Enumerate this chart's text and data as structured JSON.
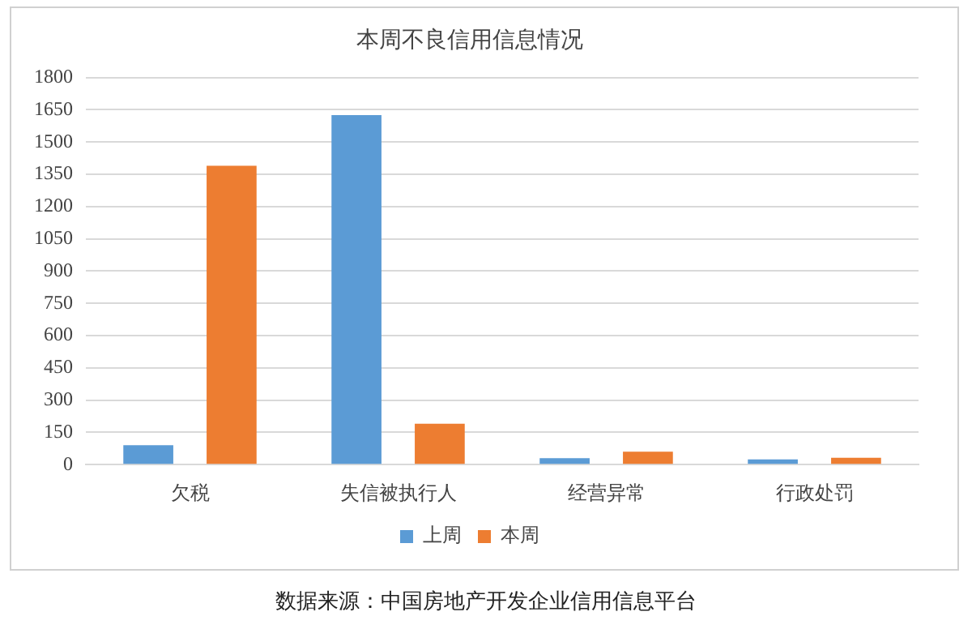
{
  "chart_data": {
    "type": "bar",
    "title": "本周不良信用信息情况",
    "categories": [
      "欠税",
      "失信被执行人",
      "经营异常",
      "行政处罚"
    ],
    "series": [
      {
        "name": "上周",
        "color": "#5b9bd5",
        "values": [
          90,
          1625,
          30,
          24
        ]
      },
      {
        "name": "本周",
        "color": "#ed7d31",
        "values": [
          1390,
          190,
          60,
          32
        ]
      }
    ],
    "ylim": [
      0,
      1800
    ],
    "yticks": [
      0,
      150,
      300,
      450,
      600,
      750,
      900,
      1050,
      1200,
      1350,
      1500,
      1650,
      1800
    ],
    "grid": "y",
    "legend": "bottom",
    "annotations": [
      "数据来源：中国房地产开发企业信用信息平台"
    ]
  }
}
